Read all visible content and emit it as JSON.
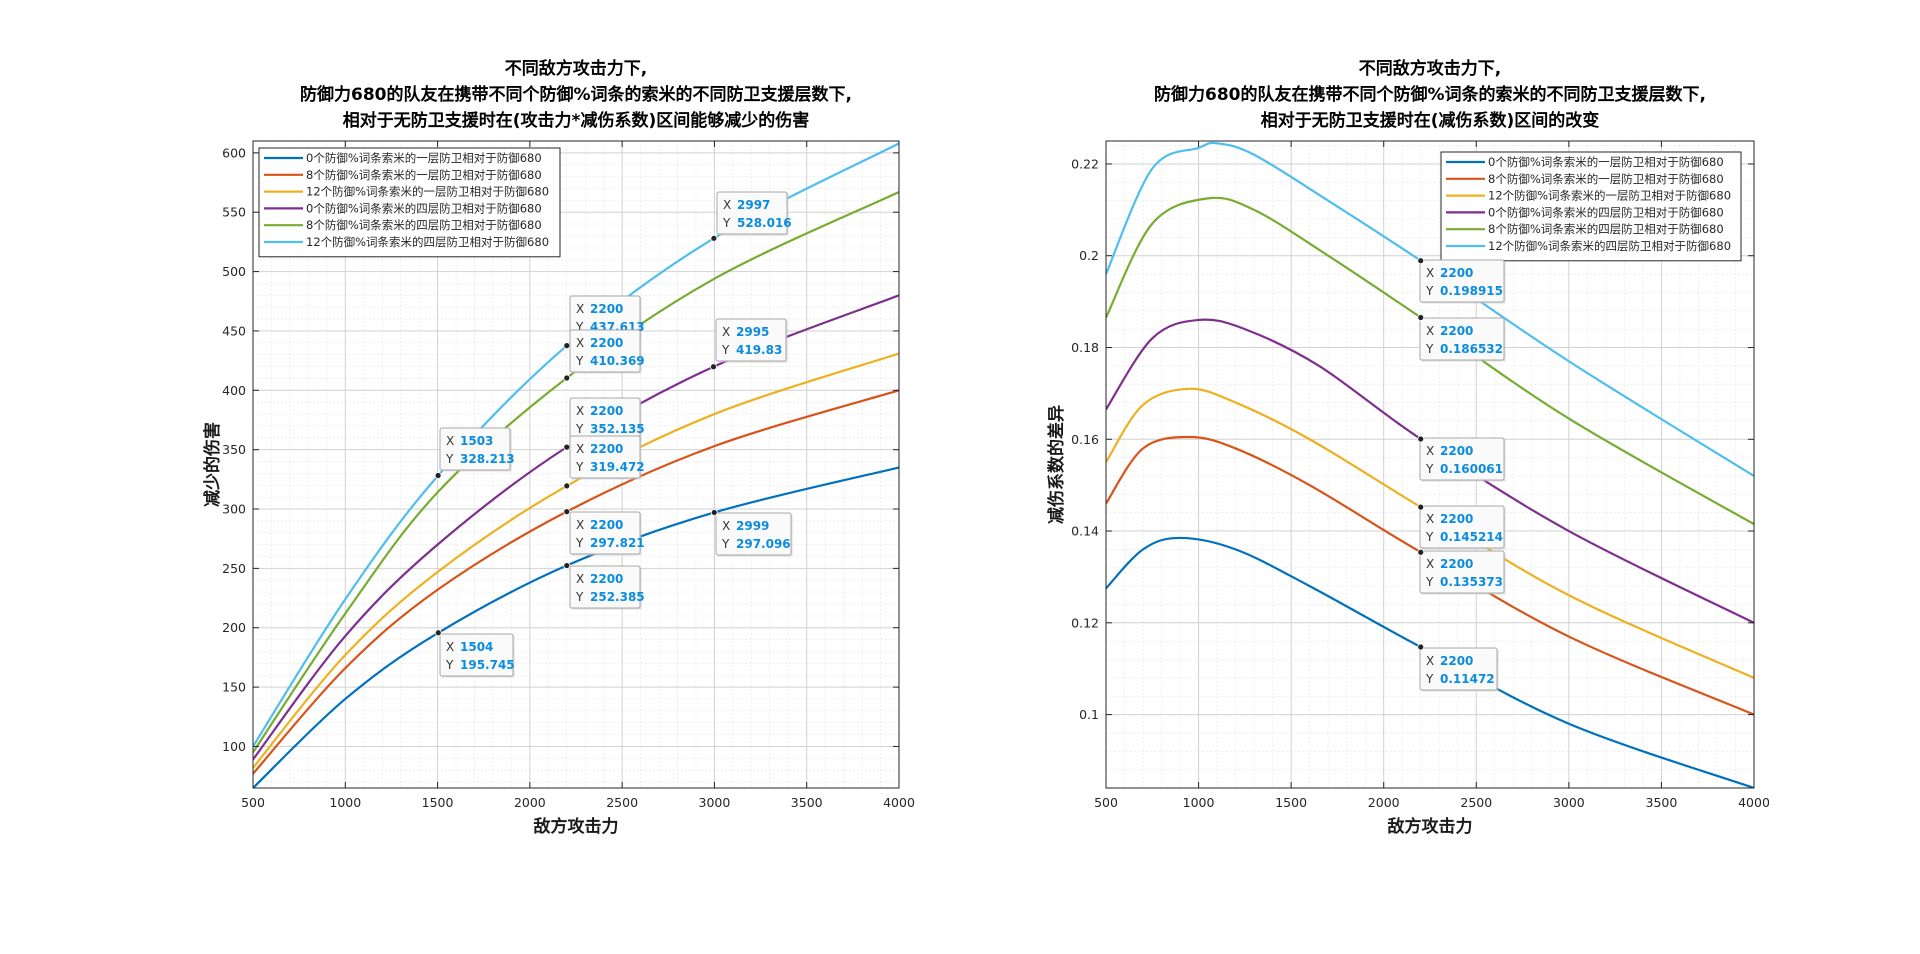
{
  "chart_data": [
    {
      "type": "line",
      "title": [
        "不同敌方攻击力下,",
        "防御力680的队友在携带不同个防御%词条的索米的不同防卫支援层数下,",
        "相对于无防卫支援时在(攻击力*减伤系数)区间能够减少的伤害"
      ],
      "xlabel": "敌方攻击力",
      "ylabel": "减少的伤害",
      "xlim": [
        500,
        4000
      ],
      "ylim": [
        65,
        610
      ],
      "xticks": [
        500,
        1000,
        1500,
        2000,
        2500,
        3000,
        3500,
        4000
      ],
      "yticks": [
        100,
        150,
        200,
        250,
        300,
        350,
        400,
        450,
        500,
        550,
        600
      ],
      "grid": true,
      "minor_grid": true,
      "legend_position": "top-left",
      "series": [
        {
          "name": "0个防御%词条索米的一层防卫相对于防御680",
          "color": "#0072BD",
          "x": [
            500,
            1000,
            1504,
            2200,
            2999,
            4000
          ],
          "y": [
            65,
            140,
            195.745,
            252.385,
            297.096,
            335
          ]
        },
        {
          "name": "8个防御%词条索米的一层防卫相对于防御680",
          "color": "#D95319",
          "x": [
            500,
            1000,
            1500,
            2200,
            3000,
            4000
          ],
          "y": [
            77,
            166,
            232,
            297.821,
            353,
            400
          ]
        },
        {
          "name": "12个防御%词条索米的一层防卫相对于防御680",
          "color": "#EDB120",
          "x": [
            500,
            1000,
            1500,
            2200,
            3000,
            4000
          ],
          "y": [
            82,
            177,
            247,
            319.472,
            380,
            431
          ]
        },
        {
          "name": "0个防御%词条索米的四层防卫相对于防御680",
          "color": "#7E2F8E",
          "x": [
            500,
            1000,
            1500,
            2200,
            2995,
            4000
          ],
          "y": [
            89,
            193,
            270,
            352.135,
            419.83,
            480
          ]
        },
        {
          "name": "8个防御%词条索米的四层防卫相对于防御680",
          "color": "#77AC30",
          "x": [
            500,
            1000,
            1500,
            2200,
            3000,
            4000
          ],
          "y": [
            95,
            212,
            314,
            410.369,
            494,
            567
          ]
        },
        {
          "name": "12个防御%词条索米的四层防卫相对于防御680",
          "color": "#4DBEEE",
          "x": [
            500,
            1000,
            1503,
            2200,
            2997,
            4000
          ],
          "y": [
            100,
            224,
            328.213,
            437.613,
            528.016,
            608
          ]
        }
      ],
      "datatips": [
        {
          "x": "2997",
          "y": "528.016",
          "series": 5
        },
        {
          "x": "2200",
          "y": "437.613",
          "series": 5
        },
        {
          "x": "2200",
          "y": "410.369",
          "series": 4
        },
        {
          "x": "2995",
          "y": "419.83",
          "series": 3
        },
        {
          "x": "1503",
          "y": "328.213",
          "series": 5
        },
        {
          "x": "2200",
          "y": "352.135",
          "series": 3
        },
        {
          "x": "2200",
          "y": "319.472",
          "series": 2
        },
        {
          "x": "2200",
          "y": "297.821",
          "series": 1
        },
        {
          "x": "2999",
          "y": "297.096",
          "series": 0
        },
        {
          "x": "2200",
          "y": "252.385",
          "series": 0
        },
        {
          "x": "1504",
          "y": "195.745",
          "series": 0
        }
      ]
    },
    {
      "type": "line",
      "title": [
        "不同敌方攻击力下,",
        "防御力680的队友在携带不同个防御%词条的索米的不同防卫支援层数下,",
        "相对于无防卫支援时在(减伤系数)区间的改变"
      ],
      "xlabel": "敌方攻击力",
      "ylabel": "减伤系数的差异",
      "xlim": [
        500,
        4000
      ],
      "ylim": [
        0.084,
        0.225
      ],
      "xticks": [
        500,
        1000,
        1500,
        2000,
        2500,
        3000,
        3500,
        4000
      ],
      "yticks": [
        0.1,
        0.12,
        0.14,
        0.16,
        0.18,
        0.2,
        0.22
      ],
      "grid": true,
      "minor_grid": true,
      "legend_position": "top-right",
      "series": [
        {
          "name": "0个防御%词条索米的一层防卫相对于防御680",
          "color": "#0072BD",
          "x": [
            500,
            700,
            900,
            1200,
            1600,
            2200,
            3000,
            4000
          ],
          "y": [
            0.1275,
            0.136,
            0.1385,
            0.136,
            0.128,
            0.11472,
            0.098,
            0.084
          ]
        },
        {
          "name": "8个防御%词条索米的一层防卫相对于防御680",
          "color": "#D95319",
          "x": [
            500,
            700,
            950,
            1200,
            1600,
            2200,
            3000,
            4000
          ],
          "y": [
            0.146,
            0.158,
            0.1605,
            0.158,
            0.15,
            0.135373,
            0.117,
            0.1
          ]
        },
        {
          "name": "12个防御%词条索米的一层防卫相对于防御680",
          "color": "#EDB120",
          "x": [
            500,
            700,
            950,
            1200,
            1600,
            2200,
            3000,
            4000
          ],
          "y": [
            0.155,
            0.1675,
            0.171,
            0.168,
            0.16,
            0.145214,
            0.126,
            0.108
          ]
        },
        {
          "name": "0个防御%词条索米的四层防卫相对于防御680",
          "color": "#7E2F8E",
          "x": [
            500,
            750,
            1000,
            1250,
            1650,
            2200,
            3000,
            4000
          ],
          "y": [
            0.1665,
            0.182,
            0.186,
            0.184,
            0.176,
            0.160061,
            0.14,
            0.12
          ]
        },
        {
          "name": "8个防御%词条索米的四层防卫相对于防御680",
          "color": "#77AC30",
          "x": [
            500,
            750,
            1050,
            1300,
            1700,
            2200,
            3000,
            4000
          ],
          "y": [
            0.1865,
            0.207,
            0.2125,
            0.21,
            0.2,
            0.186532,
            0.1645,
            0.1415
          ]
        },
        {
          "name": "12个防御%词条索米的四层防卫相对于防御680",
          "color": "#4DBEEE",
          "x": [
            500,
            750,
            1000,
            1100,
            1300,
            1700,
            2200,
            3000,
            4000
          ],
          "y": [
            0.196,
            0.219,
            0.2235,
            0.2245,
            0.222,
            0.212,
            0.198915,
            0.177,
            0.152
          ]
        }
      ],
      "datatips": [
        {
          "x": "2200",
          "y": "0.198915",
          "series": 5
        },
        {
          "x": "2200",
          "y": "0.186532",
          "series": 4
        },
        {
          "x": "2200",
          "y": "0.160061",
          "series": 3
        },
        {
          "x": "2200",
          "y": "0.145214",
          "series": 2
        },
        {
          "x": "2200",
          "y": "0.135373",
          "series": 1
        },
        {
          "x": "2200",
          "y": "0.11472",
          "series": 0
        }
      ]
    }
  ]
}
